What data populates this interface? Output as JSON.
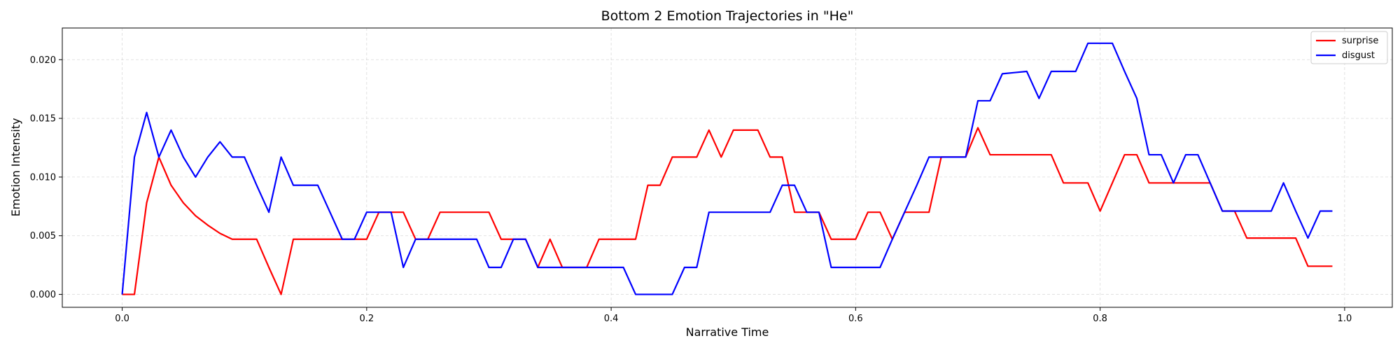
{
  "chart_data": {
    "type": "line",
    "title": "Bottom 2 Emotion Trajectories in \"He\"",
    "xlabel": "Narrative Time",
    "ylabel": "Emotion Intensity",
    "xlim": [
      -0.049,
      1.039
    ],
    "ylim": [
      -0.0011,
      0.0227
    ],
    "xticks": [
      0.0,
      0.2,
      0.4,
      0.6,
      0.8,
      1.0
    ],
    "xtick_labels": [
      "0.0",
      "0.2",
      "0.4",
      "0.6",
      "0.8",
      "1.0"
    ],
    "yticks": [
      0.0,
      0.005,
      0.01,
      0.015,
      0.02
    ],
    "ytick_labels": [
      "0.000",
      "0.005",
      "0.010",
      "0.015",
      "0.020"
    ],
    "grid": true,
    "legend_position": "top-right",
    "x": [
      0.0,
      0.01,
      0.02,
      0.03,
      0.04,
      0.05,
      0.06,
      0.07,
      0.08,
      0.09,
      0.1,
      0.11,
      0.12,
      0.13,
      0.14,
      0.15,
      0.16,
      0.17,
      0.18,
      0.19,
      0.2,
      0.21,
      0.22,
      0.23,
      0.24,
      0.25,
      0.26,
      0.27,
      0.28,
      0.29,
      0.3,
      0.31,
      0.32,
      0.33,
      0.34,
      0.35,
      0.36,
      0.37,
      0.38,
      0.39,
      0.4,
      0.41,
      0.42,
      0.43,
      0.44,
      0.45,
      0.46,
      0.47,
      0.48,
      0.49,
      0.5,
      0.51,
      0.52,
      0.53,
      0.54,
      0.55,
      0.56,
      0.57,
      0.58,
      0.59,
      0.6,
      0.61,
      0.62,
      0.63,
      0.64,
      0.65,
      0.66,
      0.67,
      0.68,
      0.69,
      0.7,
      0.71,
      0.72,
      0.73,
      0.74,
      0.75,
      0.76,
      0.77,
      0.78,
      0.79,
      0.8,
      0.81,
      0.82,
      0.83,
      0.84,
      0.85,
      0.86,
      0.87,
      0.88,
      0.89,
      0.9,
      0.91,
      0.92,
      0.93,
      0.94,
      0.95,
      0.96,
      0.97,
      0.98,
      0.99
    ],
    "series": [
      {
        "name": "surprise",
        "color": "#ff0000",
        "values": [
          0.0,
          0.0,
          0.0078,
          0.0117,
          0.0093,
          0.0078,
          0.0067,
          0.0059,
          0.0052,
          0.0047,
          0.0047,
          0.0047,
          0.0023,
          0.0,
          0.0047,
          0.0047,
          0.0047,
          0.0047,
          0.0047,
          0.0047,
          0.0047,
          0.007,
          0.007,
          0.007,
          0.0047,
          0.0047,
          0.007,
          0.007,
          0.007,
          0.007,
          0.007,
          0.0047,
          0.0047,
          0.0047,
          0.0023,
          0.0047,
          0.0023,
          0.0023,
          0.0023,
          0.0047,
          0.0047,
          0.0047,
          0.0047,
          0.0093,
          0.0093,
          0.0117,
          0.0117,
          0.0117,
          0.014,
          0.0117,
          0.014,
          0.014,
          0.014,
          0.0117,
          0.0117,
          0.007,
          0.007,
          0.007,
          0.0047,
          0.0047,
          0.0047,
          0.007,
          0.007,
          0.0047,
          0.007,
          0.007,
          0.007,
          0.0117,
          0.0117,
          0.0117,
          0.0142,
          0.0119,
          0.0119,
          0.0119,
          0.0119,
          0.0119,
          0.0119,
          0.0095,
          0.0095,
          0.0095,
          0.0071,
          0.0095,
          0.0119,
          0.0119,
          0.0095,
          0.0095,
          0.0095,
          0.0095,
          0.0095,
          0.0095,
          0.0071,
          0.0071,
          0.0048,
          0.0048,
          0.0048,
          0.0048,
          0.0048,
          0.0024,
          0.0024,
          0.0024
        ]
      },
      {
        "name": "disgust",
        "color": "#0000ff",
        "values": [
          0.0,
          0.0117,
          0.0155,
          0.0117,
          0.014,
          0.0117,
          0.01,
          0.0117,
          0.013,
          0.0117,
          0.0117,
          0.0093,
          0.007,
          0.0117,
          0.0093,
          0.0093,
          0.0093,
          0.007,
          0.0047,
          0.0047,
          0.007,
          0.007,
          0.007,
          0.0023,
          0.0047,
          0.0047,
          0.0047,
          0.0047,
          0.0047,
          0.0047,
          0.0023,
          0.0023,
          0.0047,
          0.0047,
          0.0023,
          0.0023,
          0.0023,
          0.0023,
          0.0023,
          0.0023,
          0.0023,
          0.0023,
          0.0,
          0.0,
          0.0,
          0.0,
          0.0023,
          0.0023,
          0.007,
          0.007,
          0.007,
          0.007,
          0.007,
          0.007,
          0.0093,
          0.0093,
          0.007,
          0.007,
          0.0023,
          0.0023,
          0.0023,
          0.0023,
          0.0023,
          0.0047,
          0.007,
          0.0093,
          0.0117,
          0.0117,
          0.0117,
          0.0117,
          0.0165,
          0.0165,
          0.0188,
          0.0189,
          0.019,
          0.0167,
          0.019,
          0.019,
          0.019,
          0.0214,
          0.0214,
          0.0214,
          0.019,
          0.0167,
          0.0119,
          0.0119,
          0.0095,
          0.0119,
          0.0119,
          0.0095,
          0.0071,
          0.0071,
          0.0071,
          0.0071,
          0.0071,
          0.0095,
          0.0071,
          0.0048,
          0.0071,
          0.0071
        ]
      }
    ]
  }
}
